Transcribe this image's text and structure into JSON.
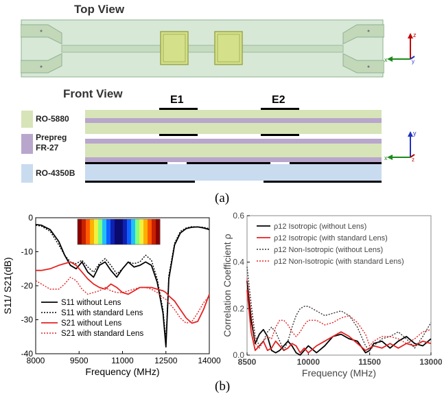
{
  "figure_a": {
    "top_view_title": "Top View",
    "front_view_title": "Front View",
    "electrode_labels": [
      "E1",
      "E2"
    ],
    "layers": [
      {
        "label": "RO-5880",
        "color": "#d6e4b8"
      },
      {
        "label": "Prepreg\nFR-27",
        "color": "#b8a6cc"
      },
      {
        "label": "RO-4350B",
        "color": "#c9dbef"
      }
    ],
    "axis_labels": {
      "x": "x",
      "y": "y",
      "z": "z"
    },
    "caption": "(a)"
  },
  "figure_b": {
    "caption": "(b)"
  },
  "chart_data": [
    {
      "type": "line",
      "xlabel": "Frequency (MHz)",
      "ylabel": "S11/ S21(dB)",
      "xlim": [
        8000,
        14000
      ],
      "ylim": [
        -40,
        0
      ],
      "xticks": [
        "8000",
        "9500",
        "11000",
        "12500",
        "14000"
      ],
      "yticks": [
        "0",
        "-10",
        "-20",
        "-30",
        "-40"
      ],
      "legend_position": "bottom-left",
      "x": [
        8000,
        8200,
        8500,
        8800,
        9000,
        9200,
        9400,
        9600,
        9800,
        10000,
        10200,
        10400,
        10600,
        10800,
        11000,
        11200,
        11400,
        11600,
        11800,
        12000,
        12200,
        12400,
        12500,
        12600,
        12800,
        13000,
        13200,
        13400,
        13600,
        13800,
        14000
      ],
      "series": [
        {
          "name": "S11 without Lens",
          "color": "#000000",
          "dash": "solid",
          "values": [
            -2,
            -2.2,
            -3.5,
            -7,
            -11,
            -14,
            -15,
            -13,
            -16,
            -17.5,
            -14,
            -13,
            -15.5,
            -17.5,
            -15,
            -13,
            -14.5,
            -14,
            -13,
            -14,
            -19,
            -28,
            -38,
            -18,
            -8,
            -4.5,
            -3.2,
            -2.8,
            -2.7,
            -3,
            -3.5
          ]
        },
        {
          "name": "S11 with standard Lens",
          "color": "#000000",
          "dash": "dotted",
          "values": [
            -2.2,
            -2.5,
            -4,
            -8,
            -11,
            -13,
            -13.5,
            -12.5,
            -14.5,
            -16,
            -13.5,
            -12,
            -14,
            -16.5,
            -15,
            -13,
            -13.5,
            -13,
            -11,
            -12.5,
            -18,
            -27,
            -36,
            -17,
            -7.5,
            -4,
            -3,
            -2.6,
            -2.7,
            -2.8,
            -3.2
          ]
        },
        {
          "name": "S21 without Lens",
          "color": "#e62020",
          "dash": "solid",
          "values": [
            -15.5,
            -15.5,
            -15,
            -14,
            -13.5,
            -13,
            -14,
            -16,
            -18,
            -19.5,
            -20.5,
            -21,
            -19.5,
            -20.5,
            -22,
            -22.5,
            -21.5,
            -20.5,
            -20.5,
            -20.5,
            -21,
            -21.5,
            -22,
            -23,
            -24.5,
            -27,
            -29.5,
            -31,
            -30.5,
            -27,
            -22.5
          ]
        },
        {
          "name": "S21 with standard Lens",
          "color": "#e62020",
          "dash": "dotted",
          "values": [
            -18.5,
            -19.5,
            -21,
            -21,
            -19.5,
            -17.5,
            -18.5,
            -21,
            -22.5,
            -22,
            -21.5,
            -20.5,
            -21.5,
            -22,
            -22,
            -21.5,
            -21,
            -20.5,
            -20.5,
            -21,
            -22,
            -23.5,
            -24,
            -25,
            -27,
            -29.5,
            -31,
            -30.5,
            -28,
            -25,
            -23
          ]
        }
      ]
    },
    {
      "type": "line",
      "xlabel": "Frequency (MHz)",
      "ylabel": "Correlation Coefficient ρ",
      "xlim": [
        8500,
        13000
      ],
      "ylim": [
        0,
        0.6
      ],
      "xticks": [
        "8500",
        "10000",
        "11500",
        "13000"
      ],
      "yticks": [
        "0.0",
        "0.2",
        "0.4",
        "0.6"
      ],
      "legend_position": "top",
      "x": [
        8500,
        8600,
        8700,
        8800,
        8900,
        9000,
        9100,
        9200,
        9300,
        9400,
        9500,
        9600,
        9700,
        9800,
        9900,
        10000,
        10200,
        10400,
        10600,
        10800,
        11000,
        11200,
        11400,
        11500,
        11600,
        11800,
        12000,
        12200,
        12400,
        12600,
        12800,
        13000
      ],
      "series": [
        {
          "name": "ρ12 Isotropic (without Lens)",
          "color": "#000000",
          "dash": "solid",
          "values": [
            0.32,
            0.15,
            0.05,
            0.09,
            0.11,
            0.08,
            0.02,
            0.01,
            0.02,
            0.04,
            0.06,
            0.04,
            0.01,
            0.0,
            0.02,
            0.04,
            0.01,
            0.04,
            0.08,
            0.09,
            0.07,
            0.06,
            0.01,
            0.02,
            0.05,
            0.06,
            0.03,
            0.06,
            0.08,
            0.05,
            0.04,
            0.07
          ]
        },
        {
          "name": "ρ12 Isotropic (with standard Lens)",
          "color": "#e62020",
          "dash": "solid",
          "values": [
            0.28,
            0.1,
            0.02,
            0.04,
            0.06,
            0.02,
            0.03,
            0.06,
            0.04,
            0.02,
            0.03,
            0.05,
            0.04,
            0.01,
            0.03,
            0.01,
            0.04,
            0.06,
            0.08,
            0.1,
            0.08,
            0.05,
            0.02,
            0.03,
            0.04,
            0.03,
            0.05,
            0.03,
            0.05,
            0.04,
            0.06,
            0.05
          ]
        },
        {
          "name": "ρ12 Non-Isotropic (without Lens)",
          "color": "#333333",
          "dash": "dotted",
          "values": [
            0.38,
            0.22,
            0.08,
            0.04,
            0.06,
            0.1,
            0.12,
            0.1,
            0.06,
            0.02,
            0.06,
            0.12,
            0.17,
            0.2,
            0.21,
            0.21,
            0.19,
            0.17,
            0.18,
            0.19,
            0.17,
            0.12,
            0.04,
            0.02,
            0.04,
            0.07,
            0.08,
            0.1,
            0.07,
            0.03,
            0.08,
            0.14
          ]
        },
        {
          "name": "ρ12 Non-Isotropic (with standard Lens)",
          "color": "#e62020",
          "dash": "dotted",
          "values": [
            0.33,
            0.18,
            0.05,
            0.03,
            0.06,
            0.08,
            0.07,
            0.12,
            0.15,
            0.15,
            0.13,
            0.1,
            0.08,
            0.1,
            0.13,
            0.15,
            0.15,
            0.13,
            0.14,
            0.16,
            0.17,
            0.14,
            0.09,
            0.04,
            0.06,
            0.08,
            0.08,
            0.07,
            0.05,
            0.07,
            0.1,
            0.11
          ]
        }
      ]
    }
  ]
}
